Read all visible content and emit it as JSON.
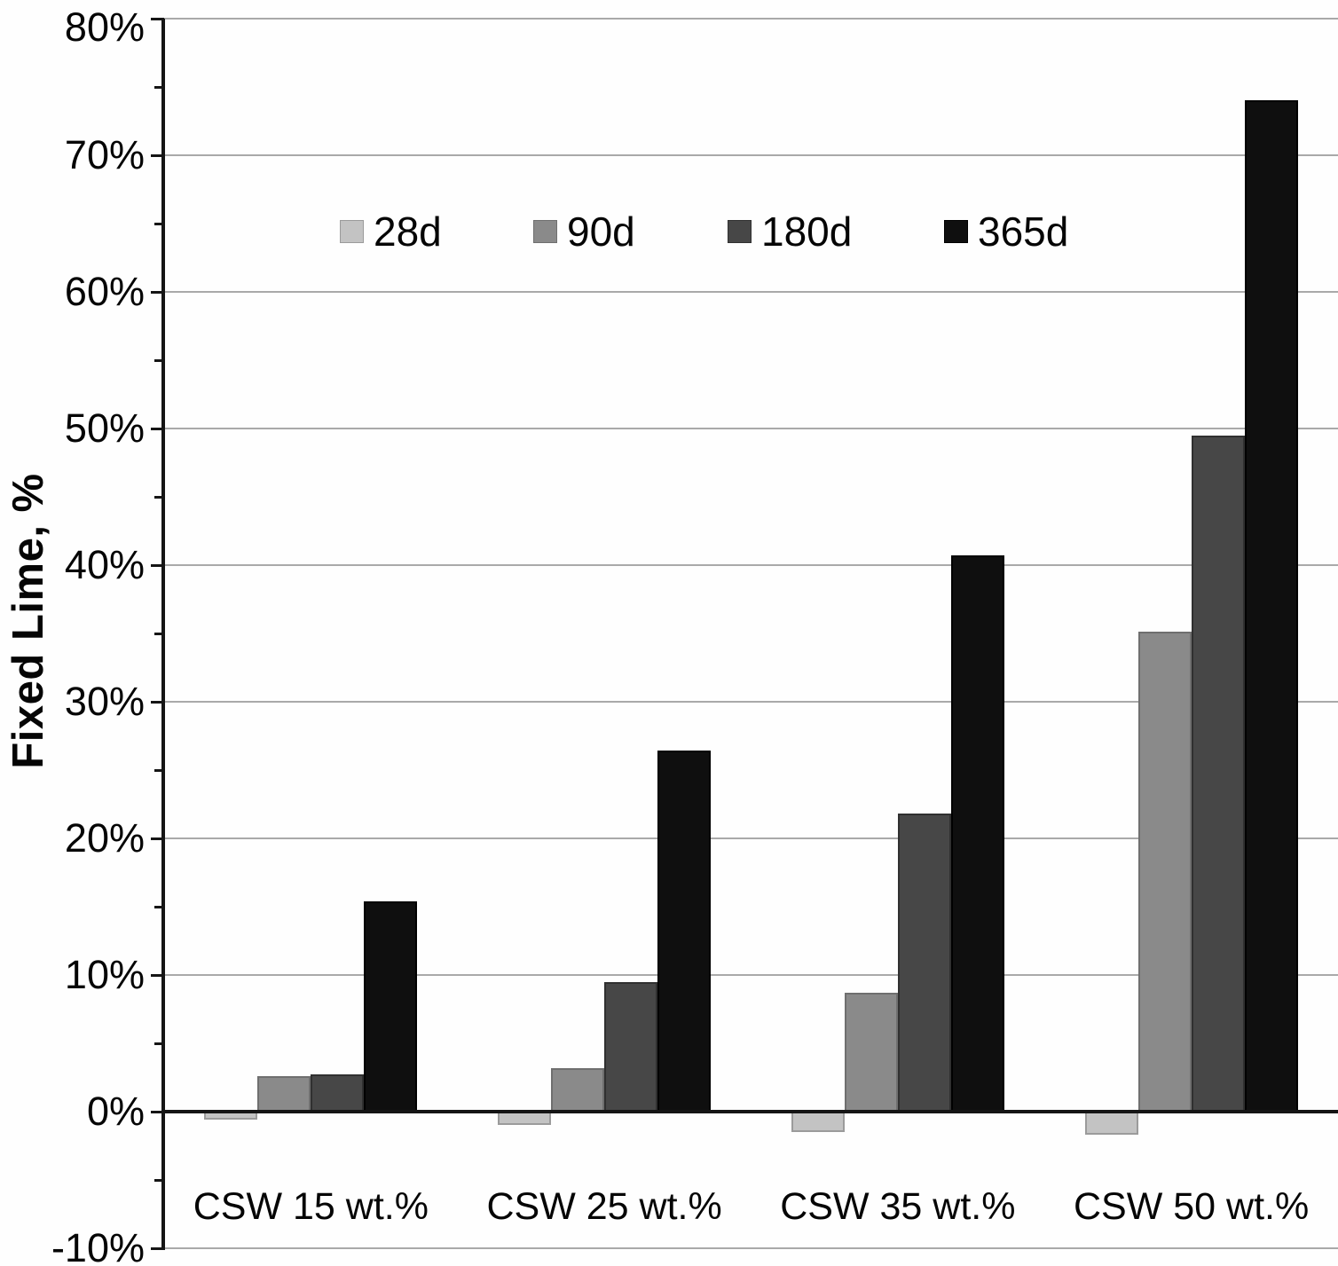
{
  "chart_data": {
    "type": "bar",
    "title": "",
    "xlabel": "",
    "ylabel": "Fixed Lime, %",
    "ylim": [
      -10,
      80
    ],
    "y_major_step": 10,
    "y_minor_step": 5,
    "grid": true,
    "legend_position": "top-inside",
    "y_ticks": [
      {
        "value": 80,
        "label": "80%"
      },
      {
        "value": 70,
        "label": "70%"
      },
      {
        "value": 60,
        "label": "60%"
      },
      {
        "value": 50,
        "label": "50%"
      },
      {
        "value": 40,
        "label": "40%"
      },
      {
        "value": 30,
        "label": "30%"
      },
      {
        "value": 20,
        "label": "20%"
      },
      {
        "value": 10,
        "label": "10%"
      },
      {
        "value": 0,
        "label": "0%"
      },
      {
        "value": -10,
        "label": "-10%"
      }
    ],
    "categories": [
      "CSW 15 wt.%",
      "CSW 25 wt.%",
      "CSW 35 wt.%",
      "CSW 50 wt.%"
    ],
    "series": [
      {
        "name": "28d",
        "color": "#c3c3c3",
        "border": "#9b9b9b",
        "values": [
          -0.6,
          -1.0,
          -1.5,
          -1.7
        ]
      },
      {
        "name": "90d",
        "color": "#8a8a8a",
        "border": "#6f6f6f",
        "values": [
          2.6,
          3.2,
          8.7,
          35.1
        ]
      },
      {
        "name": "180d",
        "color": "#474747",
        "border": "#303030",
        "values": [
          2.7,
          9.5,
          21.8,
          49.5
        ]
      },
      {
        "name": "365d",
        "color": "#0f0f0f",
        "border": "#000000",
        "values": [
          15.4,
          26.4,
          40.7,
          74.0
        ]
      }
    ],
    "colors": {
      "gridline": "#a9a9a9",
      "axis": "#151515",
      "text": "#050505",
      "background": "#fefefe"
    }
  }
}
